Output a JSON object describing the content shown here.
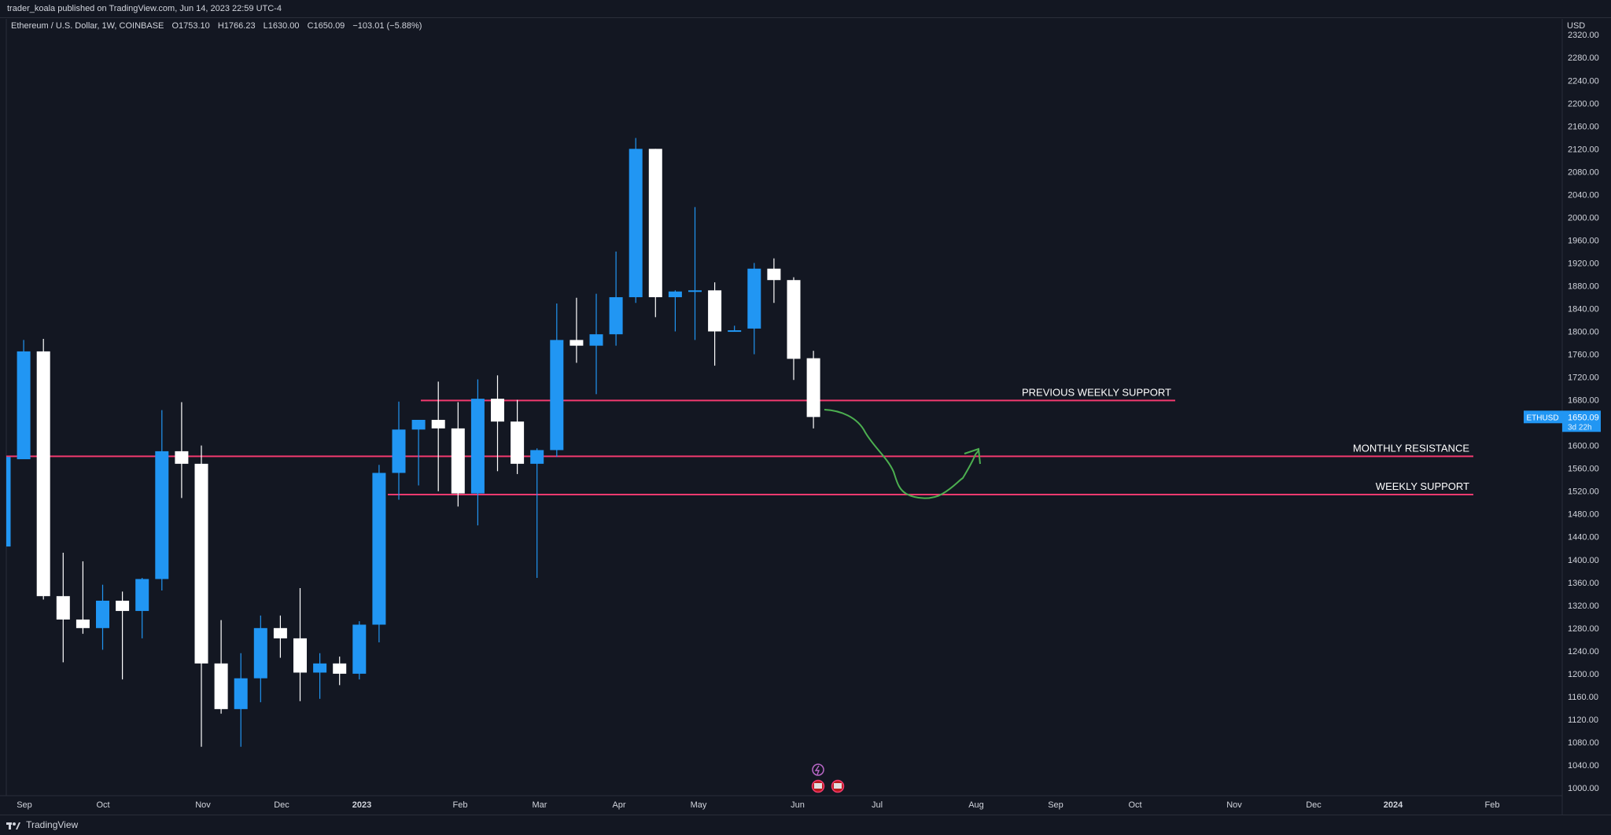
{
  "header": {
    "published": "trader_koala published on TradingView.com, Jun 14, 2023 22:59 UTC-4"
  },
  "legend": {
    "symbol": "Ethereum / U.S. Dollar, 1W, COINBASE",
    "open": "O1753.10",
    "high": "H1766.23",
    "low": "L1630.00",
    "close": "C1650.09",
    "change": "−103.01 (−5.88%)"
  },
  "price_axis": {
    "currency": "USD",
    "labels": [
      "2320.00",
      "2280.00",
      "2240.00",
      "2200.00",
      "2160.00",
      "2120.00",
      "2080.00",
      "2040.00",
      "2000.00",
      "1960.00",
      "1920.00",
      "1880.00",
      "1840.00",
      "1800.00",
      "1760.00",
      "1720.00",
      "1680.00",
      "1640.00",
      "1600.00",
      "1560.00",
      "1520.00",
      "1480.00",
      "1440.00",
      "1400.00",
      "1360.00",
      "1320.00",
      "1280.00",
      "1240.00",
      "1200.00",
      "1160.00",
      "1120.00",
      "1080.00",
      "1040.00",
      "1000.00"
    ]
  },
  "price_tag": {
    "symbol": "ETHUSD",
    "price": "1650.09",
    "countdown": "3d 22h"
  },
  "time_axis": {
    "labels": [
      {
        "text": "Sep",
        "bold": false
      },
      {
        "text": "Oct",
        "bold": false
      },
      {
        "text": "Nov",
        "bold": false
      },
      {
        "text": "Dec",
        "bold": false
      },
      {
        "text": "2023",
        "bold": true
      },
      {
        "text": "Feb",
        "bold": false
      },
      {
        "text": "Mar",
        "bold": false
      },
      {
        "text": "Apr",
        "bold": false
      },
      {
        "text": "May",
        "bold": false
      },
      {
        "text": "Jun",
        "bold": false
      },
      {
        "text": "Jul",
        "bold": false
      },
      {
        "text": "Aug",
        "bold": false
      },
      {
        "text": "Sep",
        "bold": false
      },
      {
        "text": "Oct",
        "bold": false
      },
      {
        "text": "Nov",
        "bold": false
      },
      {
        "text": "Dec",
        "bold": false
      },
      {
        "text": "2024",
        "bold": true
      },
      {
        "text": "Feb",
        "bold": false
      }
    ]
  },
  "footer": {
    "brand": "TradingView"
  },
  "colors": {
    "background": "#131722",
    "up": "#2196f3",
    "down": "#ffffff",
    "level_line": "#f23a6f",
    "projection": "#4caf50",
    "tag": "#2196f3"
  },
  "chart_data": {
    "type": "candlestick",
    "title": "Ethereum / U.S. Dollar, 1W, COINBASE",
    "xlabel": "",
    "ylabel": "",
    "ylim": [
      990,
      2330
    ],
    "y_ticks": [
      2320,
      2280,
      2240,
      2200,
      2160,
      2120,
      2080,
      2040,
      2000,
      1960,
      1920,
      1880,
      1840,
      1800,
      1760,
      1720,
      1680,
      1640,
      1600,
      1560,
      1520,
      1480,
      1440,
      1400,
      1360,
      1320,
      1280,
      1240,
      1200,
      1160,
      1120,
      1080,
      1040,
      1000
    ],
    "grid": false,
    "candles": [
      {
        "o": 1423,
        "h": 1580,
        "l": 1423,
        "c": 1580
      },
      {
        "o": 1576,
        "h": 1785,
        "l": 1576,
        "c": 1765
      },
      {
        "o": 1765,
        "h": 1787,
        "l": 1330,
        "c": 1336
      },
      {
        "o": 1336,
        "h": 1412,
        "l": 1220,
        "c": 1295
      },
      {
        "o": 1295,
        "h": 1397,
        "l": 1270,
        "c": 1280
      },
      {
        "o": 1280,
        "h": 1356,
        "l": 1242,
        "c": 1328
      },
      {
        "o": 1328,
        "h": 1344,
        "l": 1190,
        "c": 1310
      },
      {
        "o": 1310,
        "h": 1368,
        "l": 1262,
        "c": 1366
      },
      {
        "o": 1366,
        "h": 1662,
        "l": 1346,
        "c": 1590
      },
      {
        "o": 1590,
        "h": 1676,
        "l": 1508,
        "c": 1568
      },
      {
        "o": 1568,
        "h": 1600,
        "l": 1072,
        "c": 1218
      },
      {
        "o": 1218,
        "h": 1294,
        "l": 1130,
        "c": 1138
      },
      {
        "o": 1138,
        "h": 1236,
        "l": 1072,
        "c": 1192
      },
      {
        "o": 1192,
        "h": 1302,
        "l": 1150,
        "c": 1280
      },
      {
        "o": 1280,
        "h": 1302,
        "l": 1228,
        "c": 1262
      },
      {
        "o": 1262,
        "h": 1350,
        "l": 1152,
        "c": 1202
      },
      {
        "o": 1202,
        "h": 1236,
        "l": 1156,
        "c": 1218
      },
      {
        "o": 1218,
        "h": 1230,
        "l": 1180,
        "c": 1200
      },
      {
        "o": 1200,
        "h": 1292,
        "l": 1190,
        "c": 1286
      },
      {
        "o": 1286,
        "h": 1566,
        "l": 1255,
        "c": 1552
      },
      {
        "o": 1552,
        "h": 1677,
        "l": 1505,
        "c": 1628
      },
      {
        "o": 1628,
        "h": 1644,
        "l": 1530,
        "c": 1645
      },
      {
        "o": 1645,
        "h": 1712,
        "l": 1520,
        "c": 1630
      },
      {
        "o": 1630,
        "h": 1676,
        "l": 1493,
        "c": 1516
      },
      {
        "o": 1516,
        "h": 1716,
        "l": 1460,
        "c": 1682
      },
      {
        "o": 1682,
        "h": 1723,
        "l": 1555,
        "c": 1642
      },
      {
        "o": 1642,
        "h": 1680,
        "l": 1550,
        "c": 1568
      },
      {
        "o": 1568,
        "h": 1595,
        "l": 1368,
        "c": 1592
      },
      {
        "o": 1592,
        "h": 1849,
        "l": 1580,
        "c": 1785
      },
      {
        "o": 1785,
        "h": 1859,
        "l": 1745,
        "c": 1775
      },
      {
        "o": 1775,
        "h": 1866,
        "l": 1690,
        "c": 1795
      },
      {
        "o": 1795,
        "h": 1940,
        "l": 1775,
        "c": 1860
      },
      {
        "o": 1860,
        "h": 2139,
        "l": 1850,
        "c": 2120
      },
      {
        "o": 2120,
        "h": 2120,
        "l": 1825,
        "c": 1860
      },
      {
        "o": 1860,
        "h": 1872,
        "l": 1800,
        "c": 1870
      },
      {
        "o": 1870,
        "h": 2018,
        "l": 1785,
        "c": 1872
      },
      {
        "o": 1872,
        "h": 1886,
        "l": 1740,
        "c": 1800
      },
      {
        "o": 1800,
        "h": 1810,
        "l": 1800,
        "c": 1802
      },
      {
        "o": 1805,
        "h": 1920,
        "l": 1760,
        "c": 1910
      },
      {
        "o": 1910,
        "h": 1928,
        "l": 1850,
        "c": 1890
      },
      {
        "o": 1890,
        "h": 1895,
        "l": 1715,
        "c": 1752
      },
      {
        "o": 1753,
        "h": 1766,
        "l": 1630,
        "c": 1650
      }
    ],
    "levels": [
      {
        "label": "PREVIOUS WEEKLY SUPPORT",
        "price": 1679
      },
      {
        "label": "MONTHLY RESISTANCE",
        "price": 1581
      },
      {
        "label": "WEEKLY SUPPORT",
        "price": 1514
      }
    ],
    "last_price": 1650.09
  }
}
